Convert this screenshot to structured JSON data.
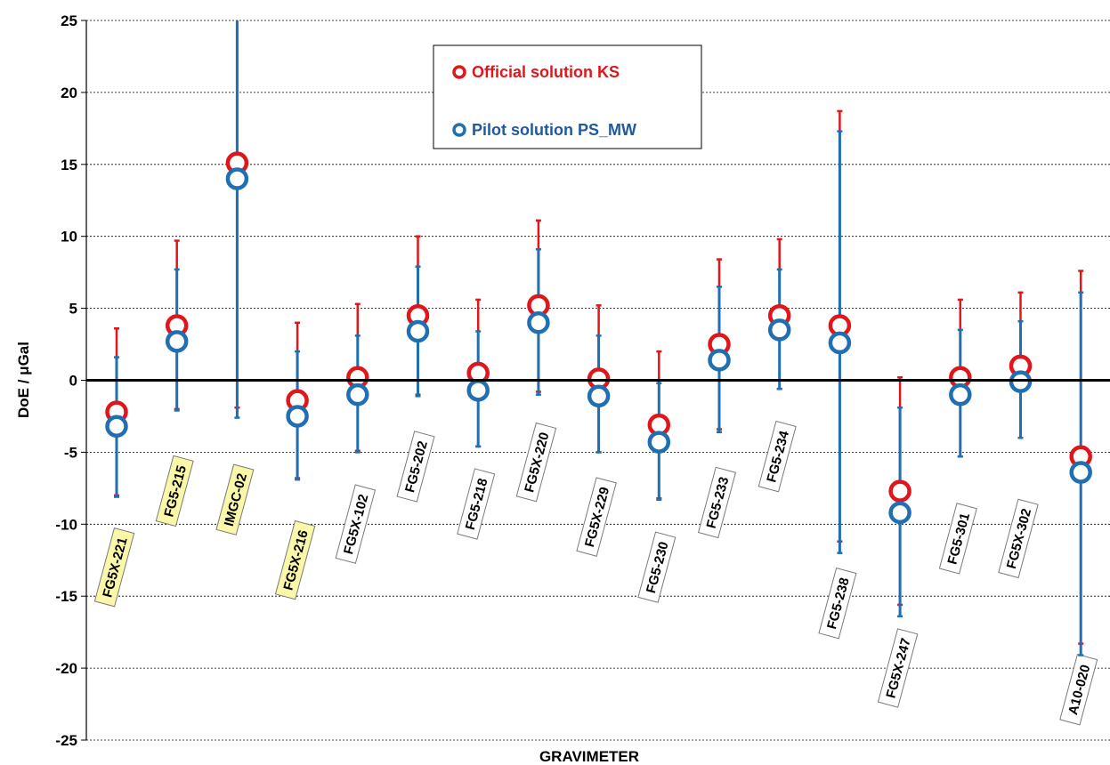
{
  "chart_data": {
    "type": "scatter",
    "title": "",
    "xlabel": "GRAVIMETER",
    "ylabel": "DoE / μGal",
    "ylim": [
      -25,
      25
    ],
    "yticks": [
      25,
      20,
      15,
      10,
      5,
      0,
      -5,
      -10,
      -15,
      -20,
      -25
    ],
    "grid": true,
    "legend_position": "top-center",
    "categories": [
      "FG5X-221",
      "FG5-215",
      "IMGC-02",
      "FG5X-216",
      "FG5X-102",
      "FG5-202",
      "FG5-218",
      "FG5X-220",
      "FG5X-229",
      "FG5-230",
      "FG5-233",
      "FG5-234",
      "FG5-238",
      "FG5X-247",
      "FG5-301",
      "FG5X-302",
      "A10-020"
    ],
    "highlighted_categories": [
      "FG5X-221",
      "FG5-215",
      "IMGC-02",
      "FG5X-216"
    ],
    "series": [
      {
        "name": "Official solution KS",
        "color": "#e0161b",
        "values": [
          -2.2,
          3.8,
          15.1,
          -1.4,
          0.2,
          4.5,
          0.5,
          5.2,
          0.1,
          -3.1,
          2.5,
          4.5,
          3.8,
          -7.7,
          0.2,
          1.0,
          -5.3
        ],
        "upper": [
          3.6,
          9.7,
          32.0,
          4.0,
          5.3,
          10.0,
          5.6,
          11.1,
          5.2,
          2.0,
          8.4,
          9.8,
          18.7,
          0.2,
          5.6,
          6.1,
          7.6
        ],
        "lower": [
          -8.0,
          -2.0,
          -1.9,
          -6.8,
          -4.9,
          -1.0,
          -4.6,
          -0.8,
          -5.0,
          -8.2,
          -3.4,
          -0.6,
          -11.2,
          -15.6,
          -5.3,
          -4.0,
          -18.3
        ]
      },
      {
        "name": "Pilot solution PS_MW",
        "color": "#1f6fb2",
        "values": [
          -3.2,
          2.7,
          14.0,
          -2.5,
          -1.0,
          3.4,
          -0.7,
          4.0,
          -1.1,
          -4.3,
          1.4,
          3.5,
          2.6,
          -9.2,
          -1.0,
          -0.1,
          -6.4
        ],
        "upper": [
          1.6,
          7.7,
          30.0,
          2.0,
          3.1,
          7.9,
          3.4,
          9.1,
          3.1,
          -0.2,
          6.5,
          7.7,
          17.3,
          -1.9,
          3.5,
          4.1,
          6.1
        ],
        "lower": [
          -8.1,
          -2.1,
          -2.6,
          -6.9,
          -5.0,
          -1.1,
          -4.6,
          -1.0,
          -5.0,
          -8.3,
          -3.6,
          -0.6,
          -12.0,
          -16.4,
          -5.3,
          -4.0,
          -19.1
        ]
      }
    ]
  }
}
